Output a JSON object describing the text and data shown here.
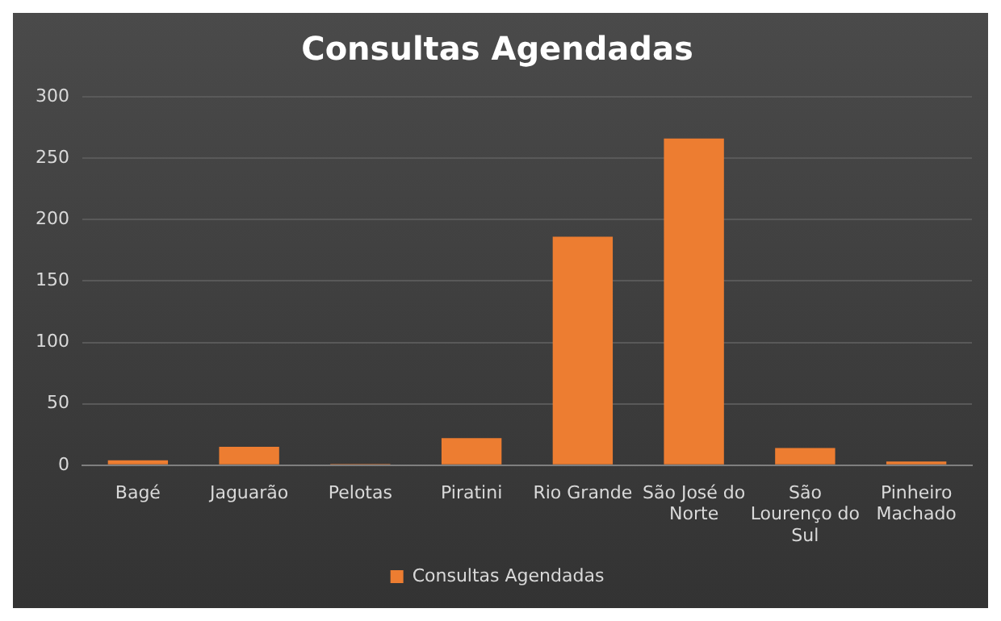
{
  "chart_data": {
    "type": "bar",
    "title": "Consultas Agendadas",
    "categories": [
      "Bagé",
      "Jaguarão",
      "Pelotas",
      "Piratini",
      "Rio Grande",
      "São José do Norte",
      "São Lourenço do Sul",
      "Pinheiro Machado"
    ],
    "series": [
      {
        "name": "Consultas Agendadas",
        "color": "#ed7d31",
        "values": [
          4,
          15,
          1,
          22,
          186,
          266,
          14,
          3
        ]
      }
    ],
    "ylim": [
      0,
      300
    ],
    "yticks": [
      0,
      50,
      100,
      150,
      200,
      250,
      300
    ],
    "grid": "y",
    "legend": "bottom"
  }
}
